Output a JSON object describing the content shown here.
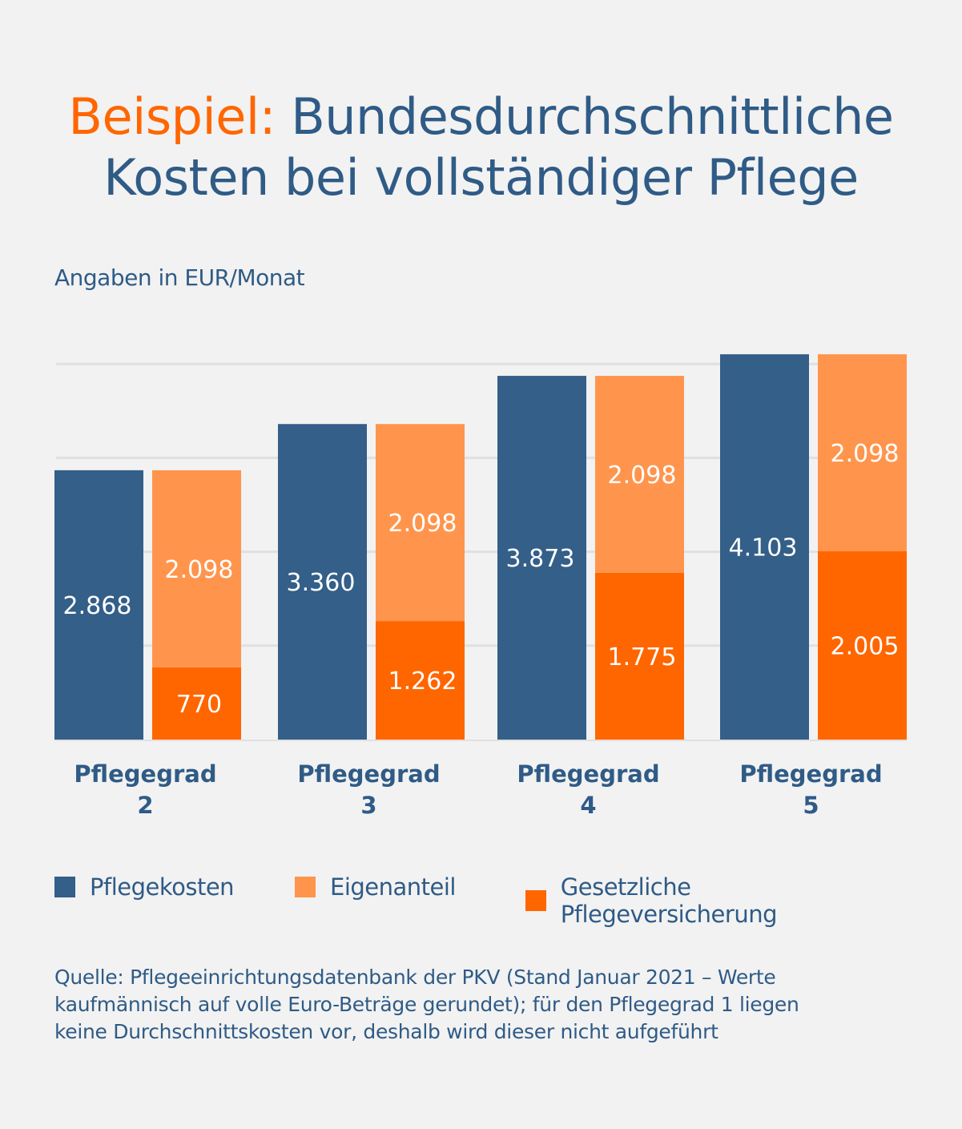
{
  "title": {
    "highlight": "Beispiel:",
    "line1": "Bundesdurchschnittliche",
    "line2": "Kosten bei vollständiger Pflege"
  },
  "subtitle": "Angaben in EUR/Monat",
  "colors": {
    "background": "#f2f2f2",
    "text": "#2f5b86",
    "pflegekosten": "#335f88",
    "eigenanteil": "#ff954d",
    "versicherung": "#ff6600",
    "grid": "#e0e0e0"
  },
  "chart_data": {
    "type": "bar",
    "stacked_second_bar": true,
    "categories": [
      [
        "Pflegegrad",
        "2"
      ],
      [
        "Pflegegrad",
        "3"
      ],
      [
        "Pflegegrad",
        "4"
      ],
      [
        "Pflegegrad",
        "5"
      ]
    ],
    "series": [
      {
        "name": "Pflegekosten",
        "values": [
          2868,
          3360,
          3873,
          4103
        ],
        "labels": [
          "2.868",
          "3.360",
          "3.873",
          "4.103"
        ]
      },
      {
        "name": "Eigenanteil",
        "values": [
          2098,
          2098,
          2098,
          2098
        ],
        "labels": [
          "2.098",
          "2.098",
          "2.098",
          "2.098"
        ]
      },
      {
        "name": "Gesetzliche Pflegeversicherung",
        "values": [
          770,
          1262,
          1775,
          2005
        ],
        "labels": [
          "770",
          "1.262",
          "1.775",
          "2.005"
        ]
      }
    ],
    "ylim": [
      0,
      4000
    ],
    "gridlines": [
      1000,
      2000,
      3000,
      4000
    ],
    "grid": true,
    "legend_position": "bottom"
  },
  "legend": [
    "Pflegekosten",
    "Eigenanteil",
    "Gesetzliche Pflegeversicherung"
  ],
  "source": [
    "Quelle: Pflegeeinrichtungsdatenbank der PKV (Stand Januar 2021 – Werte",
    "kaufmännisch auf volle Euro-Beträge gerundet); für den Pflegegrad 1 liegen",
    "keine Durchschnittskosten vor, deshalb wird dieser nicht aufgeführt"
  ]
}
